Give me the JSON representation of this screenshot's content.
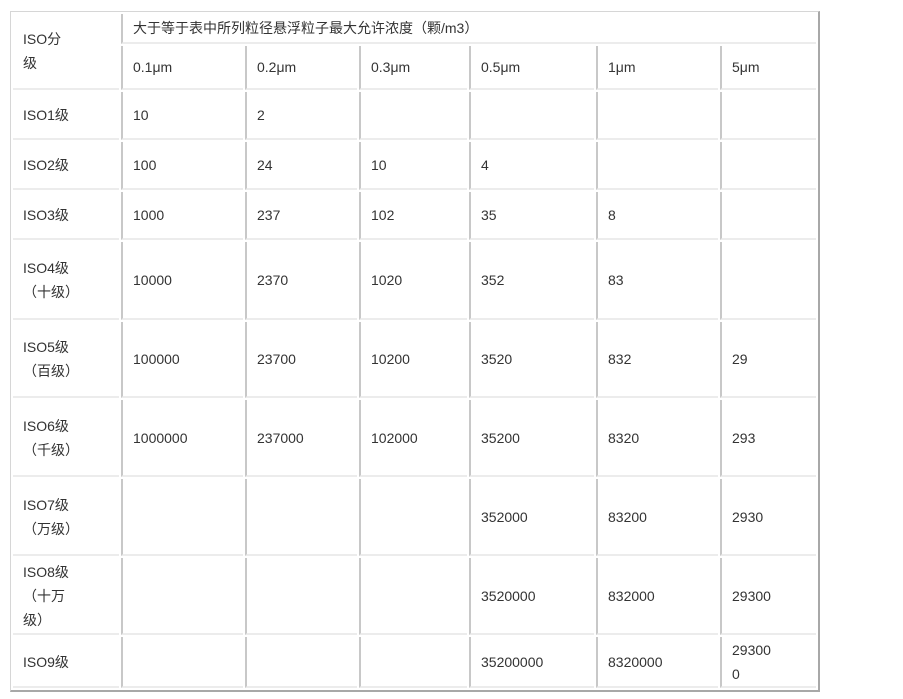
{
  "header": {
    "grade_label": "ISO分级",
    "concentration_label": "大于等于表中所列粒径悬浮粒子最大允许浓度（颗/m3）",
    "sizes": [
      "0.1μm",
      "0.2μm",
      "0.3μm",
      "0.5μm",
      "1μm",
      "5μm"
    ]
  },
  "rows": [
    {
      "grade": "ISO1级",
      "values": [
        "10",
        "2",
        "",
        "",
        "",
        ""
      ]
    },
    {
      "grade": "ISO2级",
      "values": [
        "100",
        "24",
        "10",
        "4",
        "",
        ""
      ]
    },
    {
      "grade": "ISO3级",
      "values": [
        "1000",
        "237",
        "102",
        "35",
        "8",
        ""
      ]
    },
    {
      "grade": "ISO4级（十级）",
      "values": [
        "10000",
        "2370",
        "1020",
        "352",
        "83",
        ""
      ]
    },
    {
      "grade": "ISO5级（百级）",
      "values": [
        "100000",
        "23700",
        "10200",
        "3520",
        "832",
        "29"
      ]
    },
    {
      "grade": "ISO6级（千级）",
      "values": [
        "1000000",
        "237000",
        "102000",
        "35200",
        "8320",
        "293"
      ]
    },
    {
      "grade": "ISO7级（万级）",
      "values": [
        "",
        "",
        "",
        "352000",
        "83200",
        "2930"
      ]
    },
    {
      "grade": "ISO8级（十万级）",
      "values": [
        "",
        "",
        "",
        "3520000",
        "832000",
        "29300"
      ]
    },
    {
      "grade": "ISO9级",
      "values": [
        "",
        "",
        "",
        "35200000",
        "8320000",
        "293000"
      ]
    }
  ]
}
